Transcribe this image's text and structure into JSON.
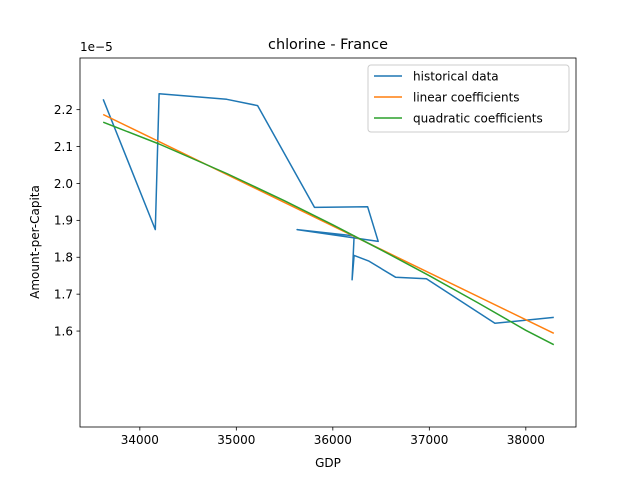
{
  "chart_data": {
    "type": "line",
    "title": "chlorine - France",
    "xlabel": "GDP",
    "ylabel": "Amount-per-Capita",
    "y_offset_label": "1e−5",
    "xlim": [
      33380,
      38520
    ],
    "ylim": [
      1.34,
      2.34
    ],
    "x_ticks": [
      34000,
      35000,
      36000,
      37000,
      38000
    ],
    "y_ticks": [
      1.6,
      1.7,
      1.8,
      1.9,
      2.0,
      2.1,
      2.2
    ],
    "x_tick_labels": [
      "34000",
      "35000",
      "36000",
      "37000",
      "38000"
    ],
    "y_tick_labels": [
      "1.6",
      "1.7",
      "1.8",
      "1.9",
      "2.0",
      "2.1",
      "2.2"
    ],
    "grid": false,
    "legend_position": "top-right",
    "series": [
      {
        "name": "historical data",
        "color": "#1f77b4",
        "x": [
          33620,
          34160,
          34200,
          34900,
          35220,
          35810,
          36360,
          36470,
          35630,
          36220,
          36200,
          36220,
          36370,
          36650,
          36970,
          37680,
          38290
        ],
        "y": [
          2.228,
          1.875,
          2.243,
          2.228,
          2.211,
          1.935,
          1.937,
          1.843,
          1.875,
          1.858,
          1.739,
          1.805,
          1.79,
          1.746,
          1.742,
          1.621,
          1.637
        ]
      },
      {
        "name": "linear coefficients",
        "color": "#ff7f0e",
        "x": [
          33620,
          38290
        ],
        "y": [
          2.187,
          1.594
        ]
      },
      {
        "name": "quadratic coefficients",
        "color": "#2ca02c",
        "x": [
          33620,
          34200,
          34900,
          35500,
          36000,
          36500,
          37000,
          37500,
          38000,
          38290
        ],
        "y": [
          2.166,
          2.107,
          2.027,
          1.953,
          1.888,
          1.82,
          1.75,
          1.677,
          1.602,
          1.563
        ]
      }
    ]
  }
}
